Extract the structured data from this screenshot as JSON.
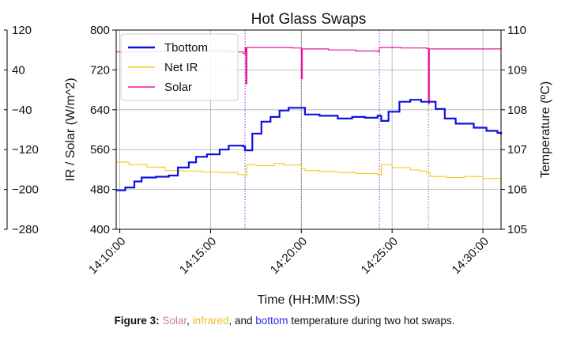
{
  "chart_data": {
    "type": "line",
    "title": "Hot Glass Swaps",
    "xlabel": "Time (HH:MM:SS)",
    "ylabel_left": "IR / Solar (W/m^2)",
    "ylabel_right": "Temperature (ºC)",
    "x_unit": "minutes after 14:10:00",
    "xlim": [
      -0.2,
      21.0
    ],
    "x_ticks": [
      "14:10:00",
      "14:15:00",
      "14:20:00",
      "14:25:00",
      "14:30:00"
    ],
    "ylim_left": [
      400,
      800
    ],
    "y_ticks_left": [
      "400",
      "480",
      "560",
      "640",
      "720",
      "800"
    ],
    "ylim_right": [
      105,
      110
    ],
    "y_ticks_right": [
      "105",
      "106",
      "107",
      "108",
      "109",
      "110"
    ],
    "ylim_outer": [
      -280,
      120
    ],
    "y_ticks_outer": [
      "120",
      "40",
      "−40",
      "−120",
      "−200",
      "−280"
    ],
    "grid": true,
    "legend_position": "top-left",
    "swap_lines_minutes": [
      6.9,
      10.0,
      14.3,
      17.0
    ],
    "series": [
      {
        "name": "Tbottom",
        "axis": "right",
        "color": "#1010e0",
        "points": [
          [
            -0.2,
            105.98
          ],
          [
            0.3,
            106.05
          ],
          [
            0.8,
            106.2
          ],
          [
            1.2,
            106.3
          ],
          [
            2.0,
            106.32
          ],
          [
            2.7,
            106.35
          ],
          [
            3.2,
            106.55
          ],
          [
            3.8,
            106.68
          ],
          [
            4.2,
            106.82
          ],
          [
            4.8,
            106.88
          ],
          [
            5.5,
            107.0
          ],
          [
            6.0,
            107.1
          ],
          [
            6.8,
            107.08
          ],
          [
            6.9,
            106.98
          ],
          [
            7.3,
            107.4
          ],
          [
            7.8,
            107.7
          ],
          [
            8.3,
            107.82
          ],
          [
            8.8,
            107.98
          ],
          [
            9.3,
            108.05
          ],
          [
            10.0,
            108.05
          ],
          [
            10.2,
            107.88
          ],
          [
            11.0,
            107.85
          ],
          [
            11.5,
            107.85
          ],
          [
            12.0,
            107.78
          ],
          [
            12.8,
            107.82
          ],
          [
            13.5,
            107.8
          ],
          [
            14.2,
            107.85
          ],
          [
            14.4,
            107.72
          ],
          [
            14.8,
            107.95
          ],
          [
            15.4,
            108.2
          ],
          [
            16.0,
            108.25
          ],
          [
            16.6,
            108.2
          ],
          [
            17.0,
            108.2
          ],
          [
            17.4,
            108.02
          ],
          [
            17.9,
            107.78
          ],
          [
            18.5,
            107.65
          ],
          [
            19.5,
            107.55
          ],
          [
            20.2,
            107.47
          ],
          [
            20.8,
            107.42
          ],
          [
            21.0,
            107.38
          ]
        ]
      },
      {
        "name": "Net IR",
        "axis": "outer",
        "color": "#f2cc1a",
        "points": [
          [
            -0.2,
            -145
          ],
          [
            0.5,
            -150
          ],
          [
            1.5,
            -155
          ],
          [
            2.5,
            -162
          ],
          [
            3.5,
            -163
          ],
          [
            4.5,
            -165
          ],
          [
            5.5,
            -166
          ],
          [
            6.5,
            -170
          ],
          [
            6.9,
            -172
          ],
          [
            7.0,
            -150
          ],
          [
            7.5,
            -152
          ],
          [
            8.5,
            -148
          ],
          [
            9.0,
            -151
          ],
          [
            10.0,
            -158
          ],
          [
            10.2,
            -162
          ],
          [
            11.0,
            -164
          ],
          [
            12.0,
            -166
          ],
          [
            13.0,
            -168
          ],
          [
            14.2,
            -171
          ],
          [
            14.4,
            -150
          ],
          [
            15.0,
            -156
          ],
          [
            16.0,
            -161
          ],
          [
            16.5,
            -163
          ],
          [
            16.9,
            -166
          ],
          [
            17.1,
            -174
          ],
          [
            18.0,
            -176
          ],
          [
            19.0,
            -174
          ],
          [
            20.0,
            -178
          ],
          [
            21.0,
            -178
          ]
        ]
      },
      {
        "name": "Solar",
        "axis": "left",
        "color": "#e8169a",
        "points": [
          [
            -0.2,
            756
          ],
          [
            2.0,
            757
          ],
          [
            4.0,
            758
          ],
          [
            6.0,
            756
          ],
          [
            6.8,
            753
          ],
          [
            6.9,
            765
          ],
          [
            6.95,
            692
          ],
          [
            7.0,
            765
          ],
          [
            8.0,
            765
          ],
          [
            9.5,
            764
          ],
          [
            9.95,
            764
          ],
          [
            10.0,
            702
          ],
          [
            10.05,
            762
          ],
          [
            11.5,
            760
          ],
          [
            13.0,
            758
          ],
          [
            14.2,
            757
          ],
          [
            14.3,
            765
          ],
          [
            15.5,
            764
          ],
          [
            16.9,
            763
          ],
          [
            17.0,
            652
          ],
          [
            17.05,
            762
          ],
          [
            19.0,
            762
          ],
          [
            21.0,
            760
          ]
        ]
      }
    ]
  },
  "caption": {
    "prefix": "Figure 3:",
    "w1": "Solar",
    "t1": ", ",
    "w2": "infrared",
    "t2": ", and ",
    "w3": "bottom",
    "t3": " temperature during two hot swaps.",
    "color_solar": "#c47ab0",
    "color_ir": "#e8c02a",
    "color_bottom": "#2a2ae0"
  }
}
